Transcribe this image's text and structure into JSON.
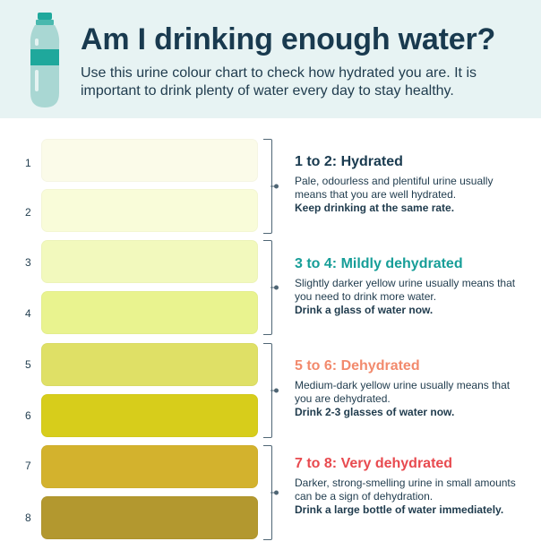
{
  "header": {
    "title": "Am I drinking enough water?",
    "subtitle": "Use this urine colour chart to check how hydrated you are. It is important to drink plenty of water every day to stay healthy."
  },
  "scale": [
    {
      "number": "1",
      "color": "#fbfbe9"
    },
    {
      "number": "2",
      "color": "#f9fcd9"
    },
    {
      "number": "3",
      "color": "#f2f9bd"
    },
    {
      "number": "4",
      "color": "#e9f38f"
    },
    {
      "number": "5",
      "color": "#dfe066"
    },
    {
      "number": "6",
      "color": "#d7cd1b"
    },
    {
      "number": "7",
      "color": "#d3b22d"
    },
    {
      "number": "8",
      "color": "#b3982f"
    }
  ],
  "groups": [
    {
      "heading": "1 to 2: Hydrated",
      "heading_color": "#193a4f",
      "body": "Pale, odourless and plentiful urine usually means that you are well hydrated.",
      "action": "Keep drinking at the same rate."
    },
    {
      "heading": "3 to 4: Mildly dehydrated",
      "heading_color": "#179e98",
      "body": "Slightly darker yellow urine usually means that you need to drink more water.",
      "action": "Drink a glass of water now."
    },
    {
      "heading": "5 to 6: Dehydrated",
      "heading_color": "#f28a6d",
      "body": "Medium-dark yellow urine usually means that you are dehydrated.",
      "action": "Drink 2-3 glasses of water now."
    },
    {
      "heading": "7 to 8: Very dehydrated",
      "heading_color": "#e84a4f",
      "body": "Darker, strong-smelling urine in small amounts can be a sign of dehydration.",
      "action": "Drink a large bottle of water immediately."
    }
  ],
  "icons": {
    "bottle": "water-bottle-icon"
  }
}
